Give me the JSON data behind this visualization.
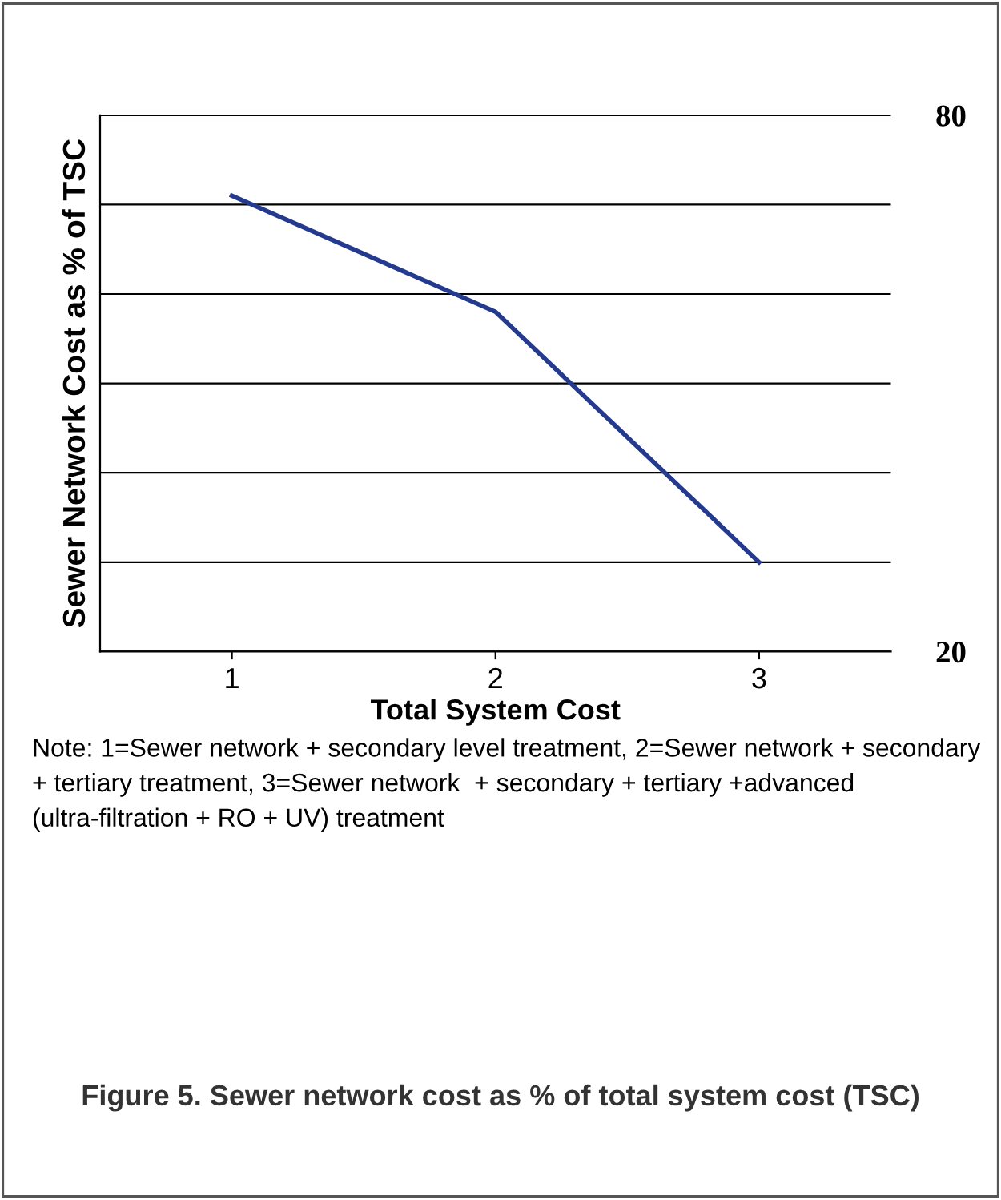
{
  "chart_data": {
    "type": "line",
    "xlabel": "Total System Cost",
    "ylabel": "Sewer Network Cost as % of TSC",
    "categories": [
      "1",
      "2",
      "3"
    ],
    "series": [
      {
        "color": "#233a8f",
        "values": [
          71,
          58,
          30
        ]
      }
    ],
    "ylim": [
      20,
      80
    ],
    "yticks": [
      {
        "value": 20,
        "label": "20"
      },
      {
        "value": 30,
        "label": null
      },
      {
        "value": 40,
        "label": null
      },
      {
        "value": 50,
        "label": null
      },
      {
        "value": 60,
        "label": null
      },
      {
        "value": 70,
        "label": null
      },
      {
        "value": 80,
        "label": "80"
      }
    ],
    "grid": "y",
    "marker": "none",
    "line_style": "solid",
    "title": "Figure 5. Sewer network cost as % of total system cost (TSC)",
    "annotations": [
      "Note: 1=Sewer network + secondary level treatment, 2=Sewer network + secondary + tertiary treatment, 3=Sewer network  + secondary + tertiary +advanced (ultra-filtration + RO + UV) treatment"
    ]
  }
}
